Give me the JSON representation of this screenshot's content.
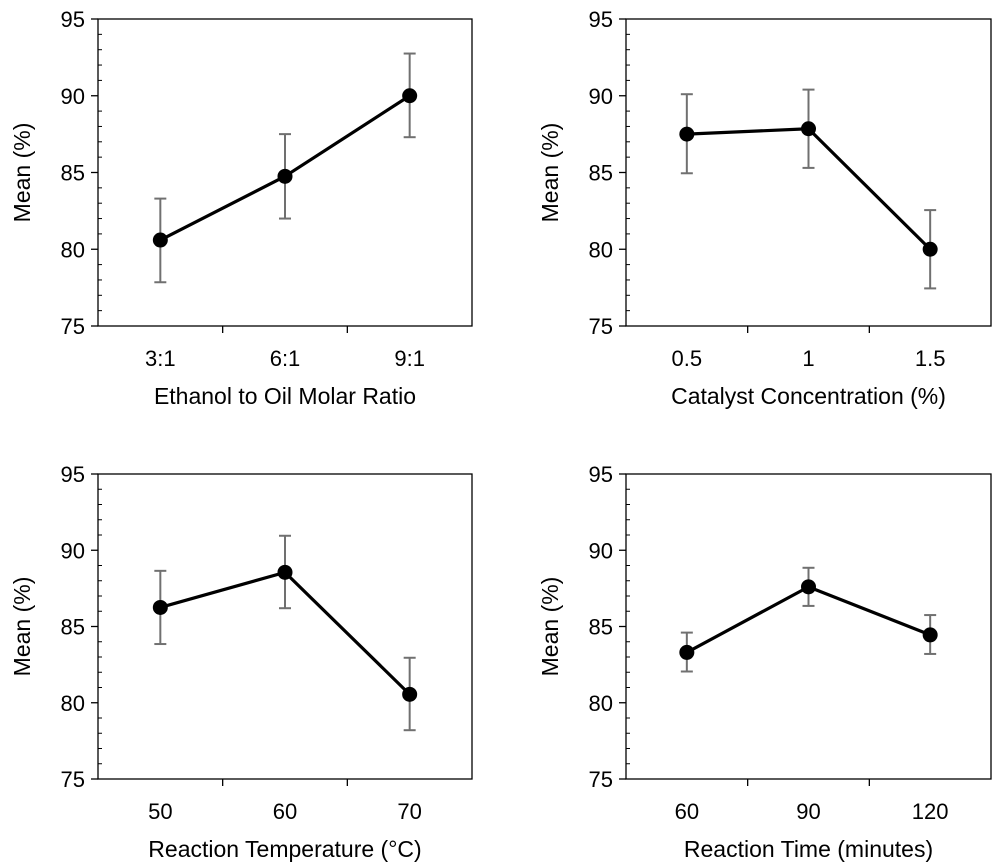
{
  "chart_data": [
    {
      "type": "line",
      "xlabel": "Ethanol to Oil Molar Ratio",
      "ylabel": "Mean (%)",
      "ylim": [
        75,
        95
      ],
      "yticks": [
        75,
        80,
        85,
        90,
        95
      ],
      "grid": false,
      "categories": [
        "3:1",
        "6:1",
        "9:1"
      ],
      "values": [
        80.6,
        84.75,
        90.0
      ],
      "error_low": [
        77.85,
        82.0,
        87.3
      ],
      "error_high": [
        83.3,
        87.5,
        92.75
      ]
    },
    {
      "type": "line",
      "xlabel": "Catalyst Concentration (%)",
      "ylabel": "Mean (%)",
      "ylim": [
        75,
        95
      ],
      "yticks": [
        75,
        80,
        85,
        90,
        95
      ],
      "grid": false,
      "categories": [
        "0.5",
        "1",
        "1.5"
      ],
      "values": [
        87.5,
        87.85,
        80.0
      ],
      "error_low": [
        84.95,
        85.3,
        77.45
      ],
      "error_high": [
        90.1,
        90.4,
        82.55
      ]
    },
    {
      "type": "line",
      "xlabel": "Reaction Temperature (°C)",
      "ylabel": "Mean (%)",
      "ylim": [
        75,
        95
      ],
      "yticks": [
        75,
        80,
        85,
        90,
        95
      ],
      "grid": false,
      "categories": [
        "50",
        "60",
        "70"
      ],
      "values": [
        86.25,
        88.55,
        80.55
      ],
      "error_low": [
        83.85,
        86.2,
        78.2
      ],
      "error_high": [
        88.65,
        90.95,
        82.95
      ]
    },
    {
      "type": "line",
      "xlabel": "Reaction Time (minutes)",
      "ylabel": "Mean (%)",
      "ylim": [
        75,
        95
      ],
      "yticks": [
        75,
        80,
        85,
        90,
        95
      ],
      "grid": false,
      "categories": [
        "60",
        "90",
        "120"
      ],
      "values": [
        83.3,
        87.6,
        84.45
      ],
      "error_low": [
        82.05,
        86.35,
        83.2
      ],
      "error_high": [
        84.6,
        88.85,
        85.75
      ]
    }
  ]
}
